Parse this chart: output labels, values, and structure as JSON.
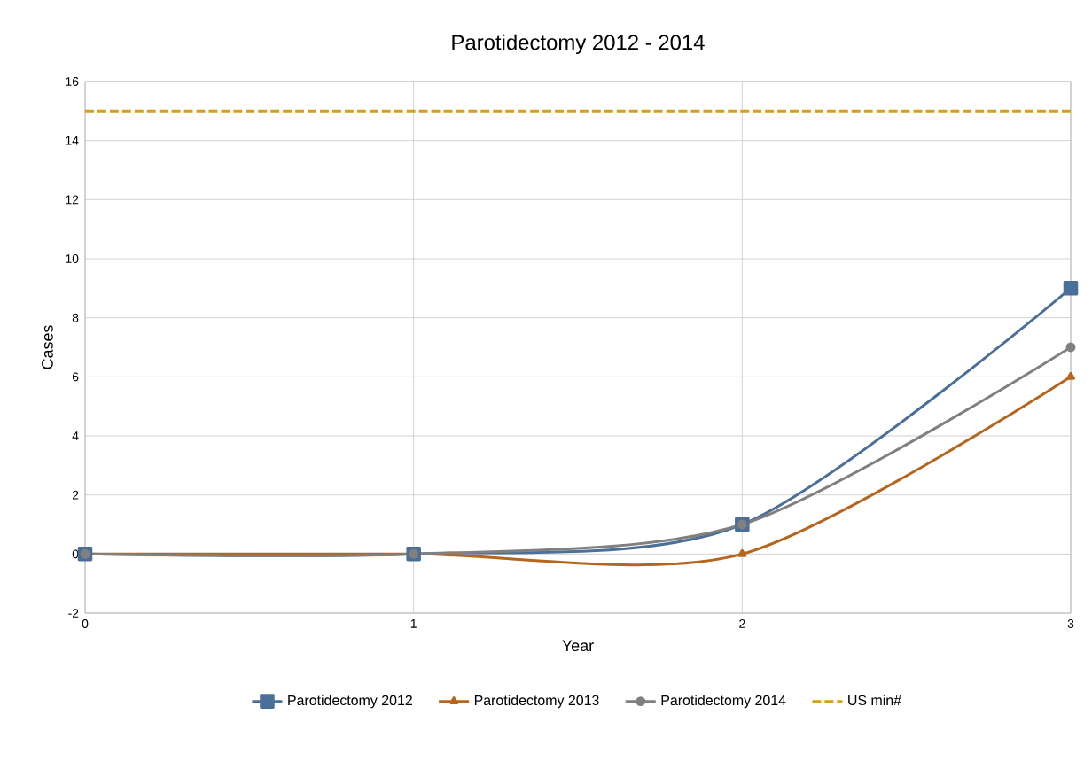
{
  "chart_data": {
    "type": "line",
    "title": "Parotidectomy  2012 - 2014",
    "xlabel": "Year",
    "ylabel": "Cases",
    "x": [
      0,
      1,
      2,
      3
    ],
    "xlim": [
      0,
      3
    ],
    "xticks": [
      0,
      1,
      2,
      3
    ],
    "ylim": [
      -2,
      16
    ],
    "yticks": [
      -2,
      0,
      2,
      4,
      6,
      8,
      10,
      12,
      14,
      16
    ],
    "grid": true,
    "legend": "bottom",
    "series": [
      {
        "name": "Parotidectomy 2012",
        "color": "#4a6f98",
        "values": [
          0,
          0,
          1,
          9
        ],
        "marker": "square",
        "line_style": "solid"
      },
      {
        "name": "Parotidectomy  2013",
        "color": "#b5651d",
        "values": [
          0,
          0,
          0,
          6
        ],
        "marker": "triangle",
        "line_style": "solid"
      },
      {
        "name": "Parotidectomy  2014",
        "color": "#808080",
        "values": [
          0,
          0,
          1,
          7
        ],
        "marker": "circle",
        "line_style": "solid"
      },
      {
        "name": "US min#",
        "color": "#d4a017",
        "values": [
          15,
          15,
          15,
          15
        ],
        "marker": "none",
        "line_style": "dashed"
      }
    ]
  }
}
